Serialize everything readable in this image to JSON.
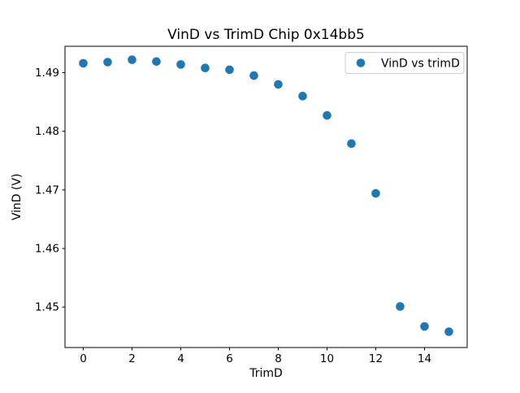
{
  "window": {
    "background_color": "#ffffff"
  },
  "chart_data": {
    "type": "scatter",
    "title": "VinD vs TrimD Chip 0x14bb5",
    "xlabel": "TrimD",
    "ylabel": "VinD (V)",
    "legend_label": "VinD vs trimD",
    "legend_position": "upper right",
    "marker_color": "#1f77b4",
    "marker_shape": "circle",
    "grid": false,
    "x": [
      0,
      1,
      2,
      3,
      4,
      5,
      6,
      7,
      8,
      9,
      10,
      11,
      12,
      13,
      14,
      15
    ],
    "y": [
      1.4916,
      1.4918,
      1.4922,
      1.4919,
      1.4914,
      1.4908,
      1.4905,
      1.4895,
      1.488,
      1.486,
      1.4827,
      1.4779,
      1.4694,
      1.4501,
      1.4467,
      1.4458
    ],
    "xticks": [
      0,
      2,
      4,
      6,
      8,
      10,
      12,
      14
    ],
    "yticks": [
      1.45,
      1.46,
      1.47,
      1.48,
      1.49
    ],
    "xlim": [
      -0.75,
      15.75
    ],
    "ylim": [
      1.4431,
      1.4945
    ]
  }
}
